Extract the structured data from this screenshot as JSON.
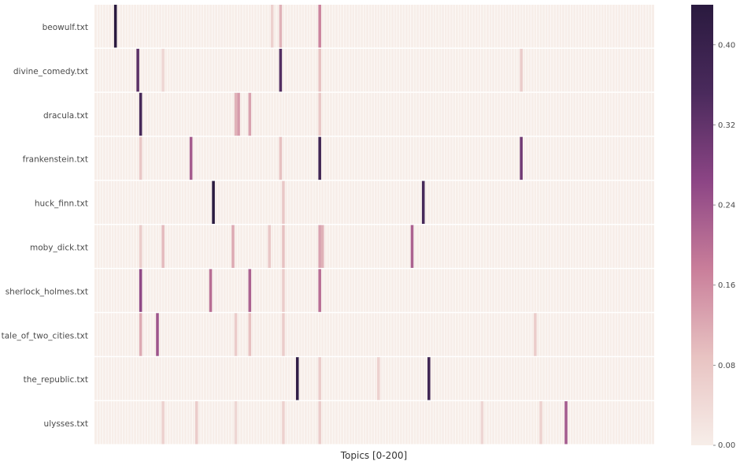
{
  "chart_data": {
    "type": "heatmap",
    "xlabel": "Topics [0-200]",
    "n_topics": 200,
    "rows": [
      "beowulf.txt",
      "divine_comedy.txt",
      "dracula.txt",
      "frankenstein.txt",
      "huck_finn.txt",
      "moby_dick.txt",
      "sherlock_holmes.txt",
      "tale_of_two_cities.txt",
      "the_republic.txt",
      "ulysses.txt"
    ],
    "highlights": [
      [
        [
          7,
          0.44
        ],
        [
          63,
          0.06
        ],
        [
          66,
          0.11
        ],
        [
          80,
          0.17
        ]
      ],
      [
        [
          15,
          0.33
        ],
        [
          24,
          0.05
        ],
        [
          66,
          0.34
        ],
        [
          80,
          0.09
        ],
        [
          152,
          0.07
        ]
      ],
      [
        [
          16,
          0.36
        ],
        [
          50,
          0.11
        ],
        [
          51,
          0.14
        ],
        [
          55,
          0.13
        ],
        [
          80,
          0.08
        ]
      ],
      [
        [
          16,
          0.08
        ],
        [
          34,
          0.23
        ],
        [
          66,
          0.09
        ],
        [
          80,
          0.38
        ],
        [
          152,
          0.3
        ]
      ],
      [
        [
          42,
          0.44
        ],
        [
          67,
          0.08
        ],
        [
          117,
          0.36
        ]
      ],
      [
        [
          16,
          0.07
        ],
        [
          24,
          0.1
        ],
        [
          49,
          0.12
        ],
        [
          62,
          0.08
        ],
        [
          67,
          0.09
        ],
        [
          80,
          0.13
        ],
        [
          81,
          0.11
        ],
        [
          113,
          0.22
        ]
      ],
      [
        [
          16,
          0.26
        ],
        [
          41,
          0.2
        ],
        [
          55,
          0.22
        ],
        [
          67,
          0.07
        ],
        [
          80,
          0.2
        ]
      ],
      [
        [
          16,
          0.12
        ],
        [
          22,
          0.24
        ],
        [
          50,
          0.07
        ],
        [
          55,
          0.09
        ],
        [
          67,
          0.07
        ],
        [
          157,
          0.07
        ]
      ],
      [
        [
          72,
          0.42
        ],
        [
          80,
          0.07
        ],
        [
          101,
          0.06
        ],
        [
          119,
          0.38
        ]
      ],
      [
        [
          24,
          0.06
        ],
        [
          36,
          0.07
        ],
        [
          50,
          0.05
        ],
        [
          67,
          0.06
        ],
        [
          80,
          0.07
        ],
        [
          138,
          0.05
        ],
        [
          159,
          0.06
        ],
        [
          168,
          0.23
        ]
      ]
    ],
    "vmin": 0.0,
    "vmax": 0.44,
    "colorbar_ticks": [
      "0.00",
      "0.08",
      "0.16",
      "0.24",
      "0.32",
      "0.40"
    ],
    "colorbar_tick_values": [
      0.0,
      0.08,
      0.16,
      0.24,
      0.32,
      0.4
    ],
    "colormap": [
      "#f7eee9",
      "#e8c3c2",
      "#c97e9a",
      "#8c4585",
      "#4a2a5c",
      "#2a1a3f"
    ],
    "grid": false,
    "legend": "colorbar-right"
  }
}
